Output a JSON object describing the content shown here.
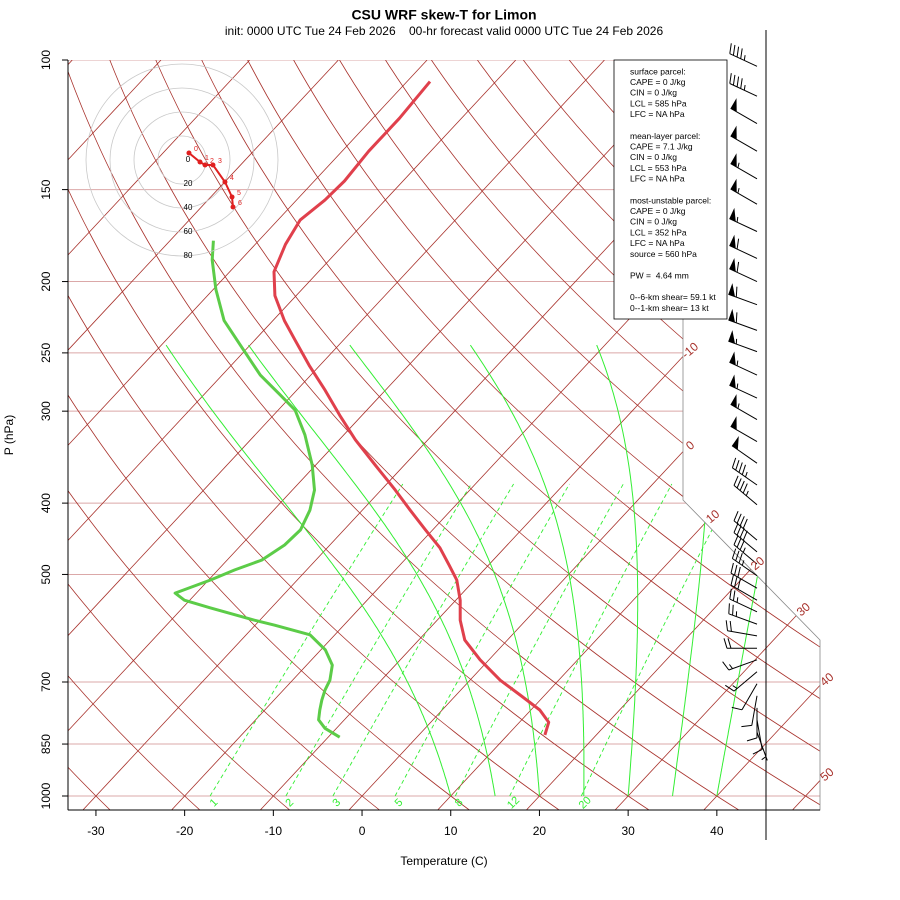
{
  "chart_data": {
    "type": "skew-t",
    "title": "CSU WRF skew-T for Limon",
    "subtitle": "init: 0000 UTC Tue 24 Feb 2026    00-hr forecast valid 0000 UTC Tue 24 Feb 2026",
    "x_label": "Temperature (C)",
    "y_label": "P (hPa)",
    "xlim": [
      -33.15,
      51.63
    ],
    "ylim": [
      1000,
      100
    ],
    "log_scale": true,
    "xticks": [
      -30,
      -20,
      -10,
      0,
      10,
      20,
      30,
      40
    ],
    "yticks": [
      100,
      150,
      200,
      250,
      300,
      400,
      500,
      700,
      850,
      1000
    ],
    "isotherms": [
      -110,
      -100,
      -90,
      -80,
      -70,
      -60,
      -50,
      -40,
      -30,
      -20,
      -10,
      0,
      10,
      20,
      30,
      40,
      50
    ],
    "isotherm_labels": [
      -10,
      0,
      10,
      20,
      30,
      40,
      50
    ],
    "isotherm_color": "#a8322c",
    "dry_adiabats": [
      -30,
      -20,
      -10,
      0,
      10,
      20,
      30,
      40,
      50,
      60,
      70,
      80,
      90,
      100,
      110,
      120,
      130,
      140,
      150,
      160,
      170,
      180,
      190,
      200
    ],
    "moist_adiabats": [
      10,
      15,
      20,
      25,
      30,
      35,
      40
    ],
    "mixing_ratios": [
      1,
      2,
      3,
      5,
      8,
      12,
      20
    ],
    "adiabat_color": "#33ee33",
    "series": [
      {
        "color": "#e0404c",
        "pressure": [
          826,
          794,
          764,
          729,
          696,
          653,
          614,
          577,
          542,
          509,
          486,
          460,
          435,
          409,
          384,
          355,
          328,
          304,
          281,
          260,
          240,
          226,
          209,
          194,
          178,
          165,
          155,
          146,
          133,
          120,
          107
        ],
        "values": [
          14.2,
          13.3,
          11.0,
          7.2,
          3.4,
          -1.0,
          -4.8,
          -7.4,
          -9.5,
          -12.0,
          -14.4,
          -17.3,
          -20.8,
          -24.6,
          -28.4,
          -33.3,
          -38.2,
          -42.5,
          -46.8,
          -51.2,
          -55.5,
          -58.7,
          -62.4,
          -65.0,
          -66.6,
          -67.5,
          -66.8,
          -66.6,
          -67.0,
          -67.0,
          -67.4
        ]
      },
      {
        "color": "#5ccc48",
        "pressure": [
          832,
          809,
          788,
          764,
          741,
          718,
          696,
          664,
          633,
          604,
          586,
          577,
          555,
          542,
          530,
          509,
          493,
          478,
          456,
          435,
          409,
          384,
          355,
          323,
          299,
          285,
          268,
          244,
          226,
          205,
          187,
          176
        ],
        "values": [
          -8.7,
          -11.3,
          -12.9,
          -13.8,
          -14.6,
          -15.3,
          -15.8,
          -17.1,
          -19.5,
          -22.8,
          -27.8,
          -30.6,
          -36.9,
          -40.6,
          -42.4,
          -39.8,
          -38.1,
          -36.1,
          -35.1,
          -34.9,
          -35.9,
          -37.5,
          -40.4,
          -44.4,
          -48.1,
          -51.4,
          -55.7,
          -61.1,
          -65.5,
          -69.7,
          -73.2,
          -75.1
        ]
      }
    ],
    "wind": {
      "pressure": [
        102,
        112,
        122,
        133,
        145,
        157,
        171,
        186,
        200,
        215,
        233,
        249,
        268,
        288,
        308,
        330,
        353,
        378,
        402,
        449,
        466,
        484,
        502,
        522,
        542,
        562,
        584,
        606,
        630,
        653,
        678,
        704,
        731,
        759,
        788,
        819
      ],
      "speed": [
        45,
        45,
        50,
        50,
        55,
        55,
        55,
        60,
        60,
        60,
        60,
        55,
        55,
        55,
        55,
        50,
        50,
        45,
        45,
        40,
        40,
        35,
        35,
        30,
        30,
        25,
        25,
        20,
        20,
        15,
        15,
        10,
        10,
        10,
        10,
        5
      ],
      "direction": [
        295,
        295,
        300,
        300,
        300,
        300,
        295,
        295,
        295,
        290,
        290,
        290,
        295,
        295,
        300,
        300,
        305,
        305,
        310,
        310,
        310,
        310,
        305,
        300,
        300,
        295,
        290,
        280,
        270,
        250,
        230,
        210,
        190,
        180,
        170,
        160
      ]
    },
    "hodograph": {
      "rings": [
        0,
        20,
        40,
        60,
        80
      ],
      "u": [
        5.8,
        15,
        19.2,
        25.8,
        35.8,
        41.7,
        42.5
      ],
      "v": [
        5.8,
        -1.7,
        -4.2,
        -4.2,
        -18.3,
        -30.8,
        -39.2
      ],
      "labels": [
        0,
        1,
        2,
        3,
        4,
        5,
        6
      ],
      "color": "#e02020"
    },
    "info_box": [
      [
        "surface parcel:",
        "CAPE = 0 J/kg",
        "CIN = 0 J/kg",
        "LCL = 585 hPa",
        "LFC = NA hPa"
      ],
      [
        "mean-layer parcel:",
        "CAPE = 7.1 J/kg",
        "CIN = 0 J/kg",
        "LCL = 553 hPa",
        "LFC = NA hPa"
      ],
      [
        "most-unstable parcel:",
        "CAPE = 0 J/kg",
        "CIN = 0 J/kg",
        "LCL = 352 hPa",
        "LFC = NA hPa",
        "source = 560 hPa"
      ],
      [
        "PW =  4.64 mm"
      ],
      [
        "0--6-km shear= 59.1 kt",
        "0--1-km shear= 13 kt"
      ]
    ]
  }
}
